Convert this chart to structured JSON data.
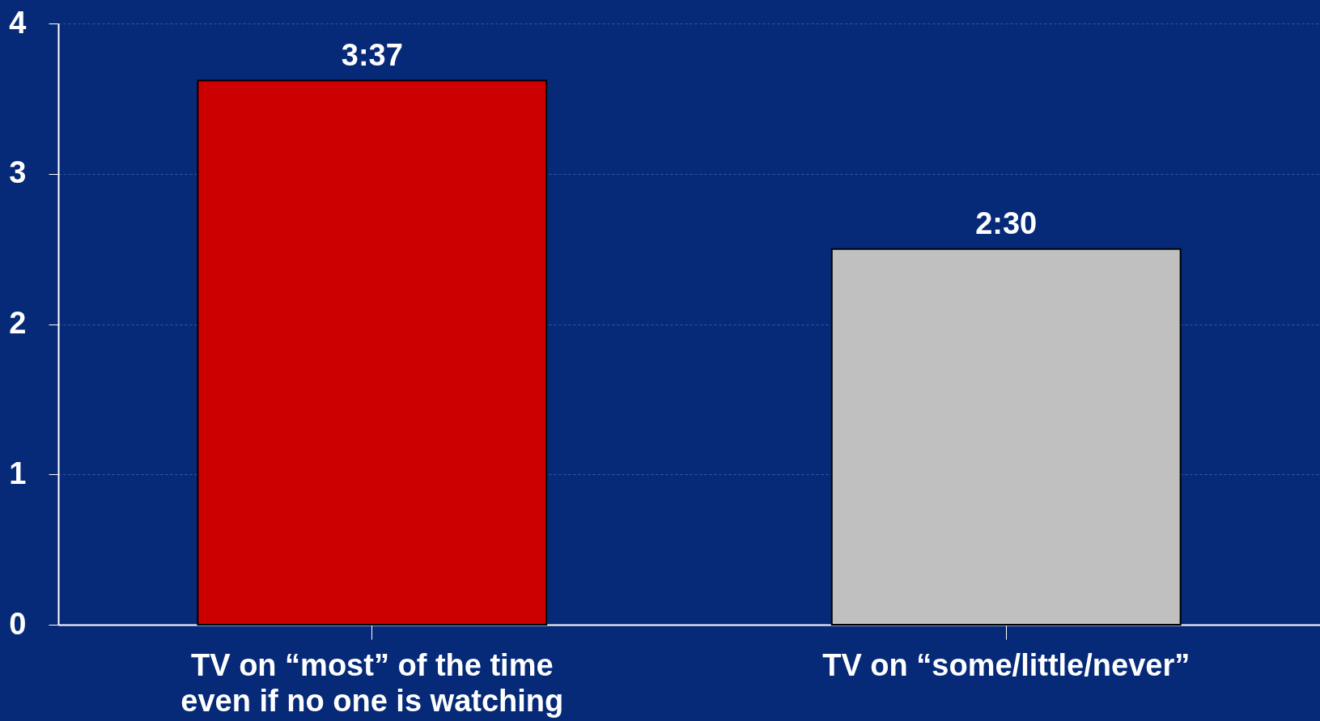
{
  "chart_data": {
    "type": "bar",
    "categories": [
      "TV on “most” of the time\neven if no one is watching",
      "TV on “some/little/never”"
    ],
    "values": [
      3.62,
      2.5
    ],
    "colors": [
      "#cc0000",
      "#c0c0c0"
    ],
    "value_labels": [
      "3:37",
      "2:30"
    ],
    "ylim": [
      0,
      4
    ],
    "yticks": [
      0,
      1,
      2,
      3,
      4
    ],
    "grid": "y"
  }
}
